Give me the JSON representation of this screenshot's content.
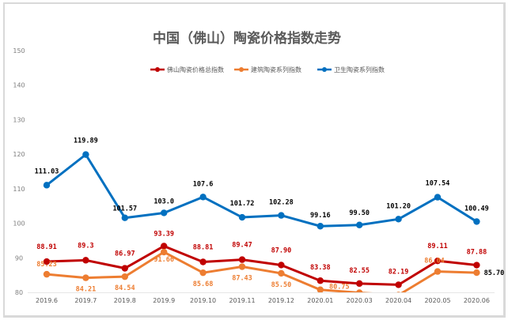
{
  "chart_data": {
    "type": "line",
    "title": "中国（佛山）陶瓷价格指数走势",
    "categories": [
      "2019.6",
      "2019.7",
      "2019.8",
      "2019.9",
      "2019.10",
      "2019.11",
      "2019.12",
      "2020.01",
      "2020.03",
      "2020.04",
      "2020.05",
      "2020.06"
    ],
    "ylim": [
      80,
      150
    ],
    "yticks": [
      "80",
      "90",
      "100",
      "110",
      "120",
      "130",
      "140",
      "150"
    ],
    "grid": false,
    "legend_position": "top",
    "series": [
      {
        "name": "佛山陶瓷价格总指数",
        "color": "#c00000",
        "label_color": "#c00000",
        "values": [
          88.91,
          89.3,
          86.97,
          93.39,
          88.81,
          89.47,
          87.9,
          83.38,
          82.55,
          82.19,
          89.11,
          87.88
        ],
        "labels": [
          "88.91",
          "89.3",
          "86.97",
          "93.39",
          "88.81",
          "89.47",
          "87.90",
          "83.38",
          "82.55",
          "82.19",
          "89.11",
          "87.88"
        ]
      },
      {
        "name": "建筑陶瓷系列指数",
        "color": "#ed7d31",
        "label_color": "#ed7d31",
        "values": [
          85.23,
          84.21,
          84.54,
          91.66,
          85.68,
          87.43,
          85.5,
          80.75,
          79.9,
          79.2,
          86.04,
          85.7
        ],
        "labels": [
          "85.23",
          "84.21",
          "84.54",
          "91.66",
          "85.68",
          "87.43",
          "85.50",
          "80.75",
          "",
          "",
          "86.04",
          "85.70"
        ]
      },
      {
        "name": "卫生陶瓷系列指数",
        "color": "#0070c0",
        "label_color": "#000000",
        "values": [
          111.03,
          119.89,
          101.57,
          103.0,
          107.6,
          101.72,
          102.28,
          99.16,
          99.5,
          101.2,
          107.54,
          100.49
        ],
        "labels": [
          "111.03",
          "119.89",
          "101.57",
          "103.0",
          "107.6",
          "101.72",
          "102.28",
          "99.16",
          "99.50",
          "101.20",
          "107.54",
          "100.49"
        ]
      }
    ]
  }
}
